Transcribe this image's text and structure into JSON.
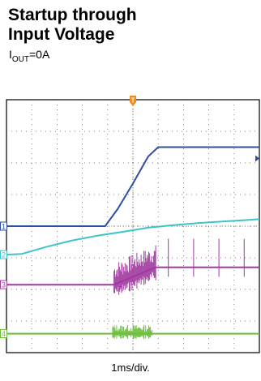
{
  "header": {
    "title_line1": "Startup through",
    "title_line2": "Input Voltage",
    "subtitle_main": "I",
    "subtitle_sub": "OUT",
    "subtitle_rest": "=0A"
  },
  "chart_data": {
    "type": "line",
    "xlabel": "1ms/div.",
    "divisions": {
      "x": 10,
      "y": 8
    },
    "grid": true,
    "x_unit": "div",
    "trigger_marker": {
      "label": "T",
      "x_div": 5.0
    },
    "series": [
      {
        "color": "#2d4fa3",
        "marker": "1",
        "ground_div": 4.0,
        "x": [
          0.0,
          3.9,
          4.4,
          5.0,
          5.6,
          6.0,
          6.8,
          10.0
        ],
        "values": [
          4.0,
          4.0,
          4.55,
          5.35,
          6.2,
          6.5,
          6.5,
          6.5
        ]
      },
      {
        "color": "#3cc4cc",
        "marker": "2",
        "ground_div": 3.1,
        "x": [
          0.0,
          0.6,
          1.6,
          2.6,
          3.6,
          4.6,
          5.6,
          6.6,
          7.6,
          8.6,
          9.6,
          10.0
        ],
        "values": [
          3.1,
          3.12,
          3.35,
          3.55,
          3.7,
          3.82,
          3.95,
          4.03,
          4.1,
          4.15,
          4.2,
          4.22
        ]
      },
      {
        "color": "#a03a9e",
        "marker": "3",
        "ground_div": 2.15,
        "x": [
          0.0,
          4.25,
          5.9,
          6.0,
          10.0
        ],
        "values": [
          2.15,
          2.15,
          2.7,
          2.7,
          2.7
        ]
      },
      {
        "color": "#6cbf3a",
        "marker": "4",
        "ground_div": 0.6,
        "x": [
          0.0,
          4.2,
          5.7,
          10.0
        ],
        "values": [
          0.6,
          0.6,
          0.6,
          0.6
        ]
      }
    ]
  }
}
